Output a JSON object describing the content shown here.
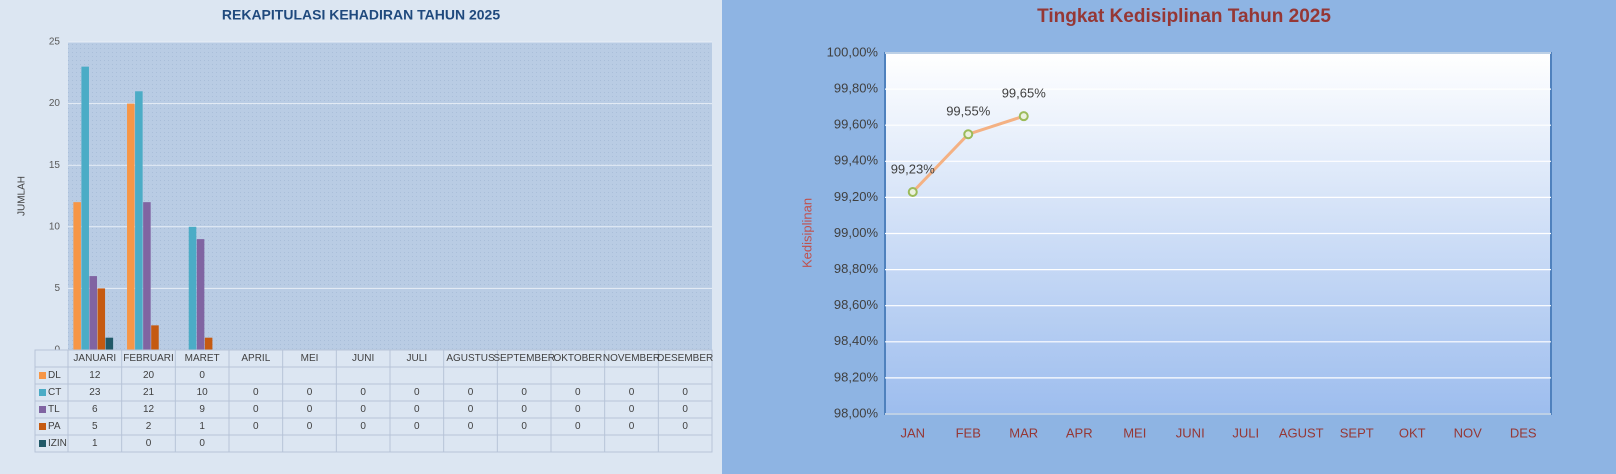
{
  "chart_data": [
    {
      "type": "bar",
      "title": "REKAPITULASI KEHADIRAN TAHUN 2025",
      "y_label": "JUMLAH",
      "categories": [
        "JANUARI",
        "FEBRUARI",
        "MARET",
        "APRIL",
        "MEI",
        "JUNI",
        "JULI",
        "AGUSTUS",
        "SEPTEMBER",
        "OKTOBER",
        "NOVEMBER",
        "DESEMBER"
      ],
      "series": [
        {
          "name": "DL",
          "color": "#f79646",
          "values": [
            12,
            20,
            0,
            null,
            null,
            null,
            null,
            null,
            null,
            null,
            null,
            null
          ]
        },
        {
          "name": "CT",
          "color": "#4bacc6",
          "values": [
            23,
            21,
            10,
            0,
            0,
            0,
            0,
            0,
            0,
            0,
            0,
            0
          ]
        },
        {
          "name": "TL",
          "color": "#8064a2",
          "values": [
            6,
            12,
            9,
            0,
            0,
            0,
            0,
            0,
            0,
            0,
            0,
            0
          ]
        },
        {
          "name": "PA",
          "color": "#c55a11",
          "values": [
            5,
            2,
            1,
            0,
            0,
            0,
            0,
            0,
            0,
            0,
            0,
            0
          ]
        },
        {
          "name": "IZIN",
          "color": "#215968",
          "values": [
            1,
            0,
            0,
            null,
            null,
            null,
            null,
            null,
            null,
            null,
            null,
            null
          ]
        }
      ],
      "ylim": [
        0,
        25
      ],
      "yticks": [
        0,
        5,
        10,
        15,
        20,
        25
      ],
      "grid": true,
      "data_table": true
    },
    {
      "type": "line",
      "title": "Tingkat Kedisiplinan Tahun 2025",
      "y_label": "Kedisiplinan",
      "categories": [
        "JAN",
        "FEB",
        "MAR",
        "APR",
        "MEI",
        "JUNI",
        "JULI",
        "AGUST",
        "SEPT",
        "OKT",
        "NOV",
        "DES"
      ],
      "values": [
        99.23,
        99.55,
        99.65,
        null,
        null,
        null,
        null,
        null,
        null,
        null,
        null,
        null
      ],
      "value_labels": [
        "99,23%",
        "99,55%",
        "99,65%",
        null,
        null,
        null,
        null,
        null,
        null,
        null,
        null,
        null
      ],
      "color": "#f4b183",
      "marker_color": "#9bbb59",
      "ylim": [
        98,
        100
      ],
      "yticks": [
        {
          "value": 98,
          "label": "98,00%"
        },
        {
          "value": 98.2,
          "label": "98,20%"
        },
        {
          "value": 98.4,
          "label": "98,40%"
        },
        {
          "value": 98.6,
          "label": "98,60%"
        },
        {
          "value": 98.8,
          "label": "98,80%"
        },
        {
          "value": 99,
          "label": "99,00%"
        },
        {
          "value": 99.2,
          "label": "99,20%"
        },
        {
          "value": 99.4,
          "label": "99,40%"
        },
        {
          "value": 99.6,
          "label": "99,60%"
        },
        {
          "value": 99.8,
          "label": "99,80%"
        },
        {
          "value": 100,
          "label": "100,00%"
        }
      ],
      "grid": true
    }
  ]
}
